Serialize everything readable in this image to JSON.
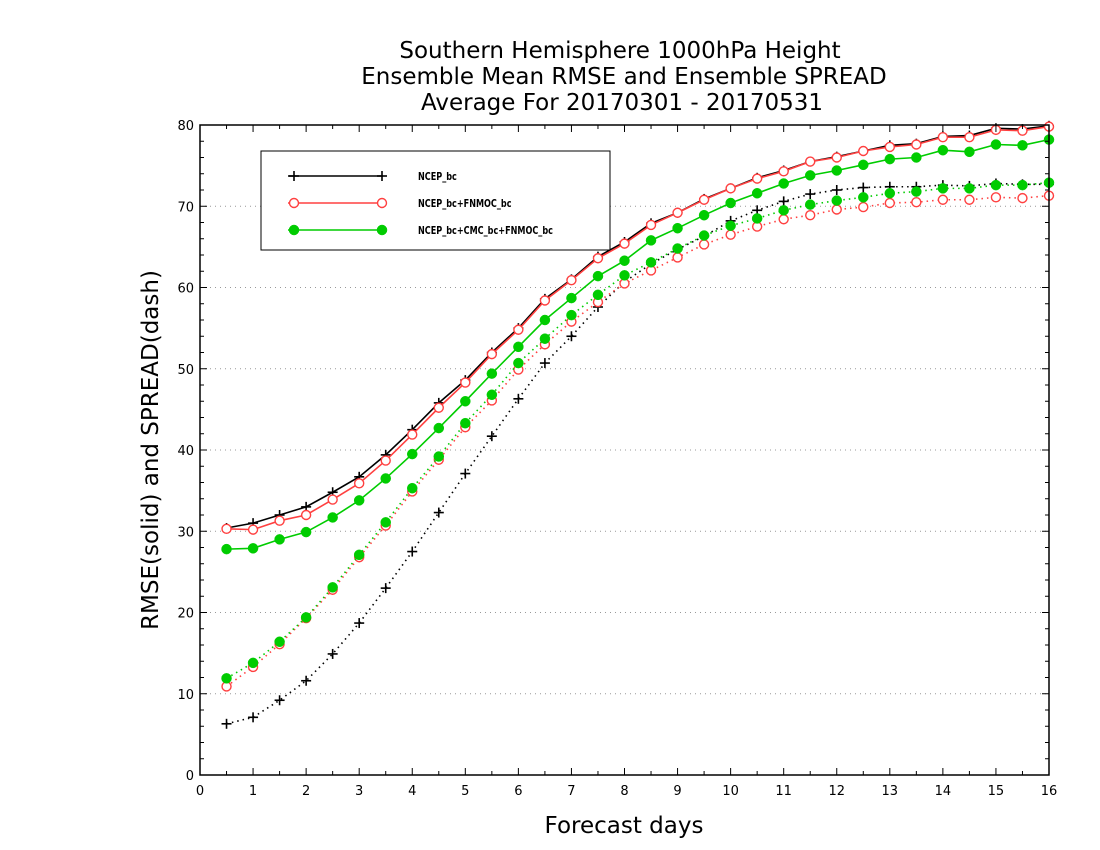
{
  "chart_data": {
    "type": "line",
    "title": [
      "Southern Hemisphere 1000hPa Height",
      "Ensemble Mean RMSE and Ensemble SPREAD",
      "Average For 20170301 - 20170531"
    ],
    "xlabel": "Forecast days",
    "ylabel": "RMSE(solid) and SPREAD(dash)",
    "xlim": [
      0,
      16
    ],
    "ylim": [
      0,
      80
    ],
    "xticks": [
      "0",
      "1",
      "2",
      "3",
      "4",
      "5",
      "6",
      "7",
      "8",
      "9",
      "10",
      "11",
      "12",
      "13",
      "14",
      "15",
      "16"
    ],
    "yticks": [
      "0",
      "10",
      "20",
      "30",
      "40",
      "50",
      "60",
      "70",
      "80"
    ],
    "grid": "horizontal dotted",
    "legend_position": "top-left",
    "x": [
      0.5,
      1,
      1.5,
      2,
      2.5,
      3,
      3.5,
      4,
      4.5,
      5,
      5.5,
      6,
      6.5,
      7,
      7.5,
      8,
      8.5,
      9,
      9.5,
      10,
      10.5,
      11,
      11.5,
      12,
      12.5,
      13,
      13.5,
      14,
      14.5,
      15,
      15.5,
      16
    ],
    "series": [
      {
        "name": "NCEP_bc",
        "color": "#000000",
        "marker": "plus",
        "rmse": [
          30.4,
          31.0,
          32.0,
          33.0,
          34.8,
          36.7,
          39.4,
          42.5,
          45.8,
          48.6,
          52.0,
          55.0,
          58.6,
          61.0,
          63.8,
          65.6,
          67.9,
          69.2,
          70.9,
          72.2,
          73.5,
          74.4,
          75.5,
          76.1,
          76.8,
          77.5,
          77.7,
          78.6,
          78.7,
          79.6,
          79.5,
          79.9
        ],
        "spread": [
          6.3,
          7.1,
          9.2,
          11.6,
          14.9,
          18.7,
          23.0,
          27.5,
          32.3,
          37.1,
          41.7,
          46.3,
          50.7,
          54.0,
          57.6,
          60.7,
          62.9,
          64.7,
          66.3,
          68.2,
          69.5,
          70.6,
          71.5,
          72.0,
          72.3,
          72.4,
          72.4,
          72.6,
          72.5,
          72.8,
          72.7,
          72.7
        ]
      },
      {
        "name": "NCEP_bc+FNMOC_bc",
        "color": "#ff4040",
        "marker": "open-circle",
        "rmse": [
          30.3,
          30.2,
          31.3,
          32.0,
          33.9,
          35.9,
          38.7,
          41.9,
          45.2,
          48.3,
          51.8,
          54.8,
          58.4,
          60.9,
          63.6,
          65.4,
          67.7,
          69.2,
          70.8,
          72.2,
          73.4,
          74.3,
          75.5,
          76.0,
          76.8,
          77.3,
          77.6,
          78.5,
          78.5,
          79.4,
          79.3,
          79.8
        ],
        "spread": [
          10.9,
          13.3,
          16.1,
          19.3,
          22.8,
          26.8,
          30.7,
          34.9,
          38.8,
          42.8,
          46.1,
          49.9,
          53.0,
          55.8,
          58.2,
          60.5,
          62.1,
          63.7,
          65.3,
          66.5,
          67.5,
          68.4,
          68.9,
          69.6,
          69.9,
          70.4,
          70.5,
          70.8,
          70.8,
          71.1,
          71.0,
          71.3
        ]
      },
      {
        "name": "NCEP_bc+CMC_bc+FNMOC_bc",
        "color": "#00cc00",
        "marker": "filled-circle",
        "rmse": [
          27.8,
          27.9,
          29.0,
          29.9,
          31.7,
          33.8,
          36.5,
          39.5,
          42.7,
          46.0,
          49.4,
          52.7,
          56.0,
          58.7,
          61.4,
          63.3,
          65.8,
          67.3,
          68.9,
          70.4,
          71.6,
          72.8,
          73.8,
          74.4,
          75.1,
          75.8,
          76.0,
          76.9,
          76.7,
          77.6,
          77.5,
          78.2
        ],
        "spread": [
          11.9,
          13.8,
          16.4,
          19.4,
          23.1,
          27.1,
          31.1,
          35.3,
          39.2,
          43.3,
          46.8,
          50.7,
          53.7,
          56.6,
          59.1,
          61.5,
          63.1,
          64.8,
          66.4,
          67.6,
          68.5,
          69.5,
          70.2,
          70.7,
          71.1,
          71.6,
          71.8,
          72.2,
          72.2,
          72.6,
          72.6,
          72.9
        ]
      }
    ]
  }
}
